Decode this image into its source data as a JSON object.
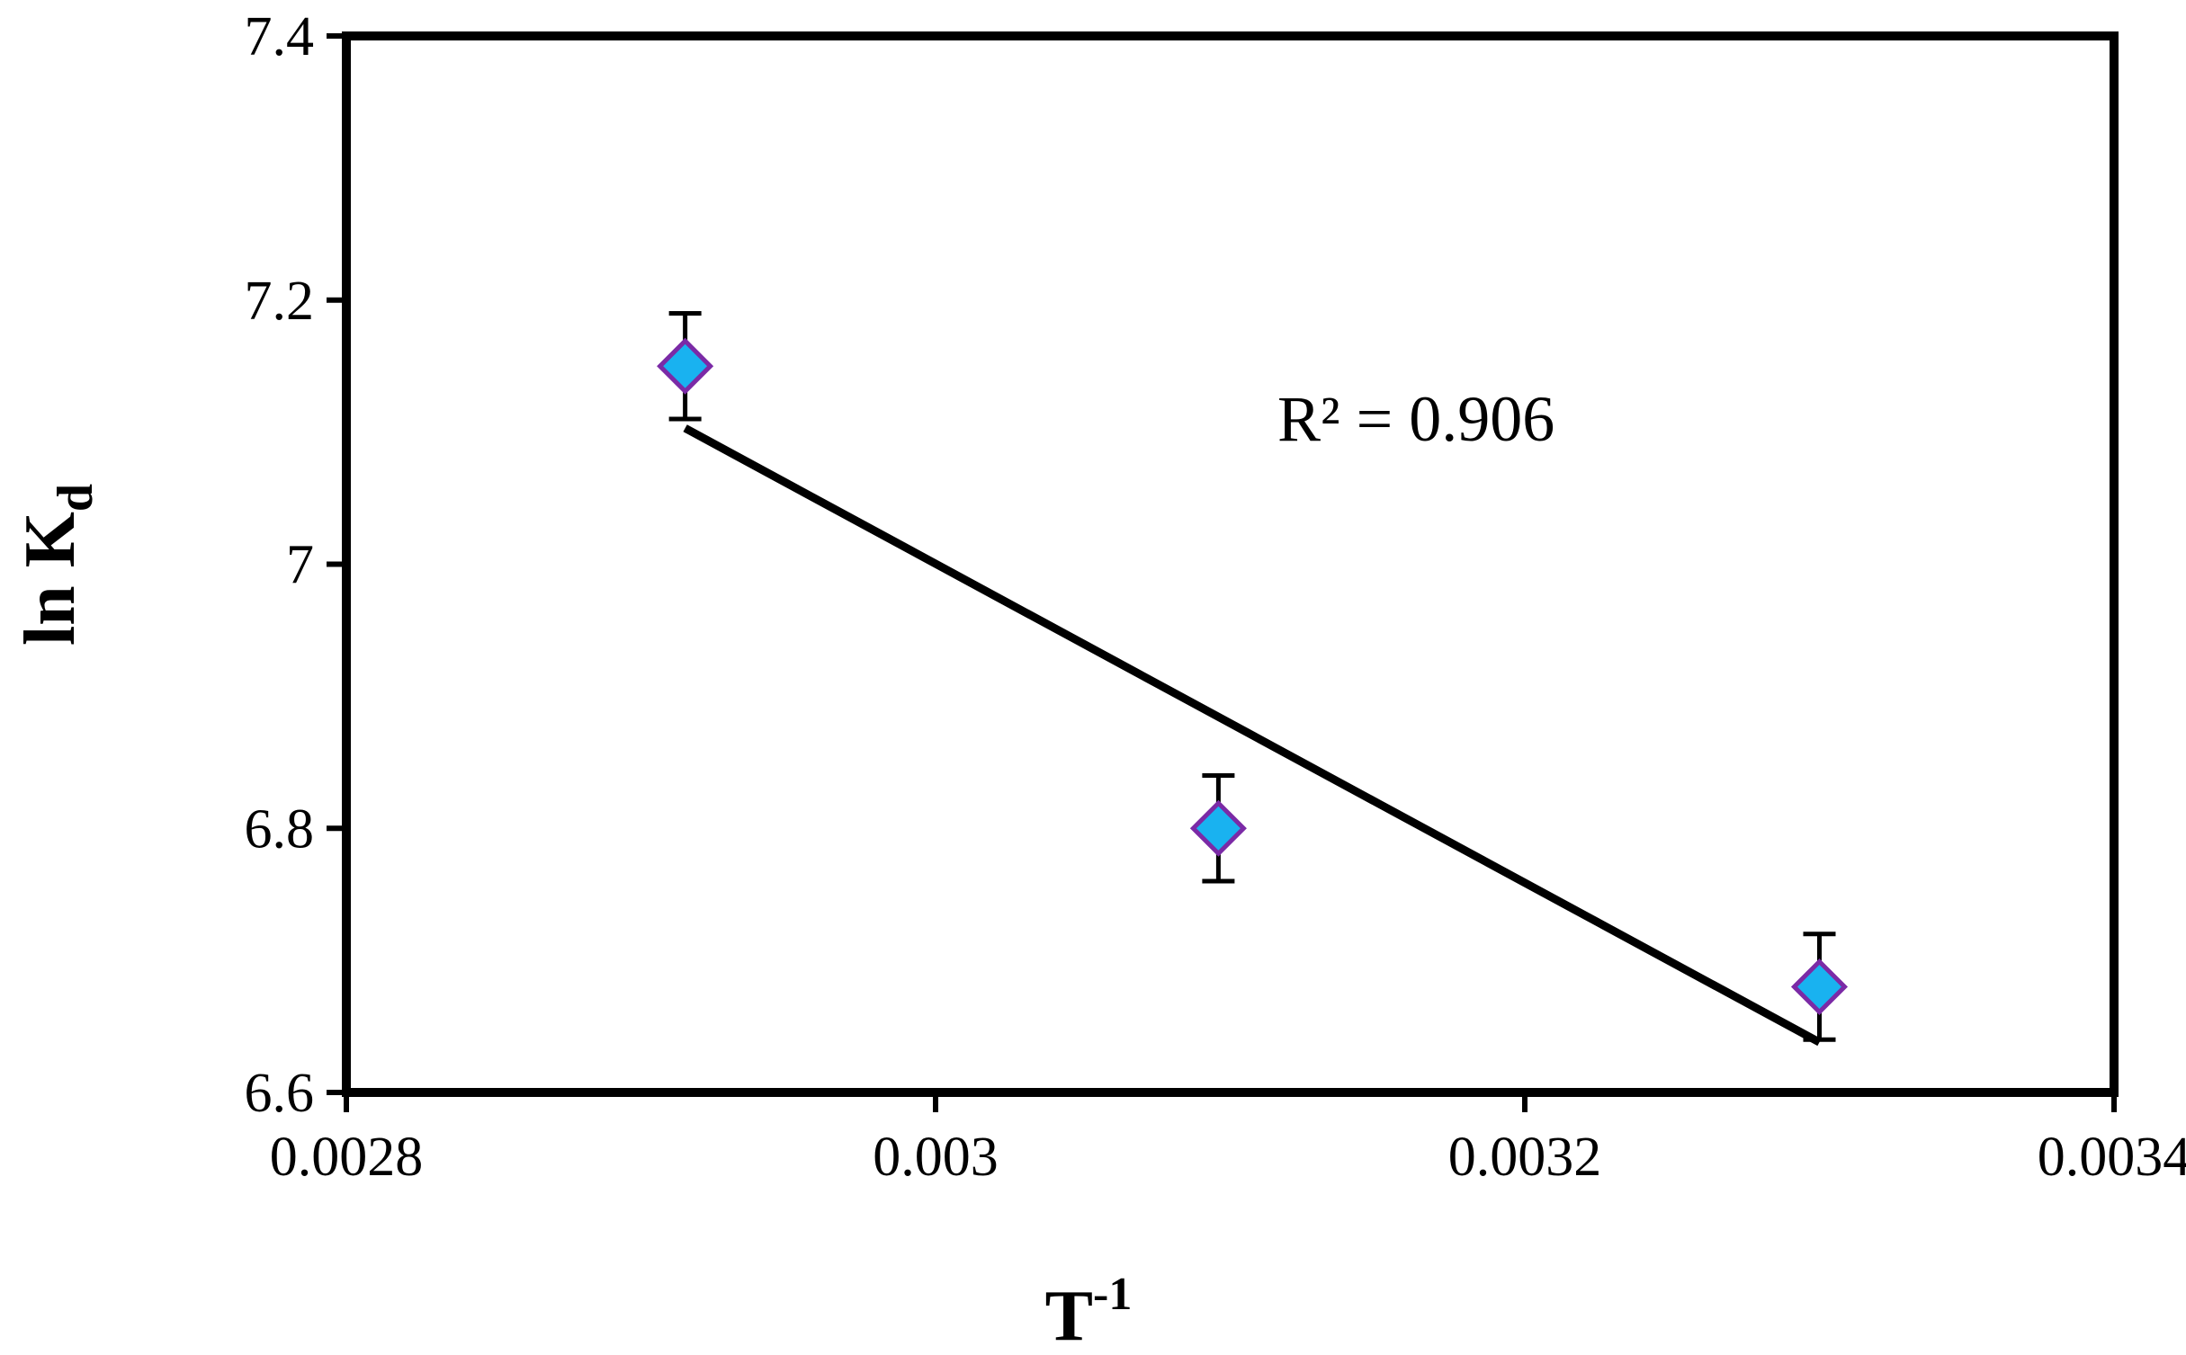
{
  "chart_data": {
    "type": "scatter",
    "title": "",
    "xlabel": "T",
    "xlabel_superscript": "-1",
    "ylabel": "ln K",
    "ylabel_subscript": "d",
    "xlim": [
      0.0028,
      0.0034
    ],
    "ylim": [
      6.6,
      7.4
    ],
    "xticks": [
      "0.0028",
      "0.003",
      "0.0032",
      "0.0034"
    ],
    "yticks": [
      "6.6",
      "6.8",
      "7",
      "7.2",
      "7.4"
    ],
    "xtick_values": [
      0.0028,
      0.003,
      0.0032,
      0.0034
    ],
    "ytick_values": [
      6.6,
      6.8,
      7.0,
      7.2,
      7.4
    ],
    "grid": false,
    "legend": "none",
    "series": [
      {
        "points": [
          {
            "x": 0.002915,
            "y": 7.15,
            "err": 0.04
          },
          {
            "x": 0.003096,
            "y": 6.8,
            "err": 0.04
          },
          {
            "x": 0.0033,
            "y": 6.68,
            "err": 0.04
          }
        ],
        "marker": "diamond",
        "marker_fill": "#19b2f0",
        "marker_edge": "#7b2aa6"
      }
    ],
    "trendline": {
      "type": "linear",
      "from": {
        "x": 0.002915,
        "y": 7.103
      },
      "to": {
        "x": 0.0033,
        "y": 6.638
      },
      "color": "#000000"
    },
    "annotation": "R² = 0.906"
  }
}
